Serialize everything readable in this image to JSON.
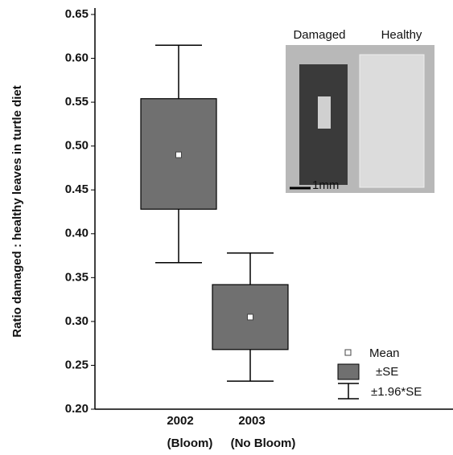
{
  "chart_data": {
    "type": "box",
    "y_label": "Ratio damaged : healthy leaves in turtle diet",
    "categories": [
      "2002",
      "2003"
    ],
    "category_notes": [
      "(Bloom)",
      "(No Bloom)"
    ],
    "series": [
      {
        "name": "Mean",
        "values": [
          0.49,
          0.305
        ],
        "color": "#ffffff"
      },
      {
        "name": "±SE",
        "low": [
          0.428,
          0.268
        ],
        "high": [
          0.554,
          0.342
        ],
        "color": "#707070"
      },
      {
        "name": "±1.96*SE",
        "low": [
          0.367,
          0.232
        ],
        "high": [
          0.615,
          0.378
        ],
        "color": "#000000"
      }
    ],
    "ylim": [
      0.2,
      0.65
    ],
    "yticks": [
      {
        "value": 0.2,
        "label": "0.20"
      },
      0.25,
      {
        "value": 0.3,
        "label": "0.30"
      },
      0.35,
      {
        "value": 0.4,
        "label": "0.40"
      },
      0.45,
      {
        "value": 0.5,
        "label": "0.50"
      },
      0.55,
      {
        "value": 0.6,
        "label": "0.60"
      },
      0.65
    ],
    "inset": {
      "labels": [
        "Damaged",
        "Healthy"
      ],
      "scale_bar": "1mm"
    }
  }
}
